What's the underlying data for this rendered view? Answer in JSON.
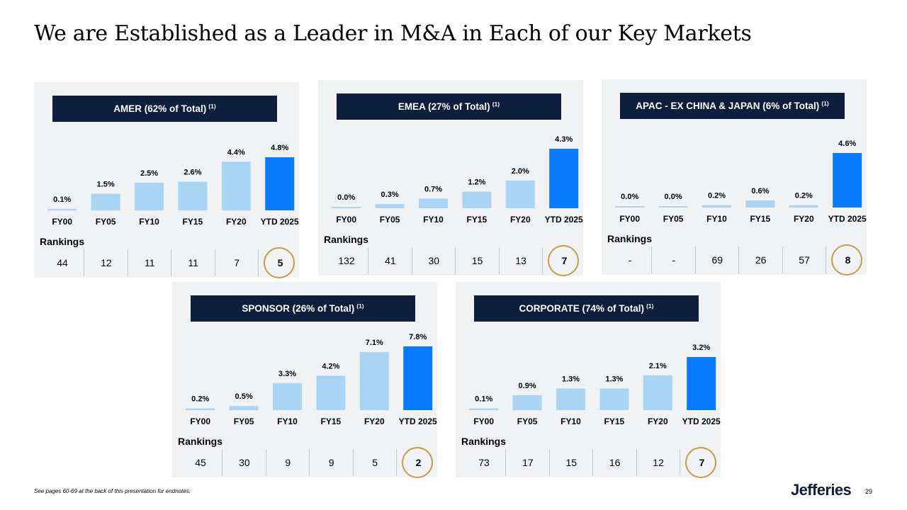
{
  "slide": {
    "title": "We are Established as a Leader in M&A in Each of our Key Markets",
    "footnote": "See pages 60-69 at the back of this presentation for endnotes.",
    "logo_text": "Jefferies",
    "page_number": "29",
    "rankings_label": "Rankings"
  },
  "colors": {
    "bar_light": "#a9d4f3",
    "bar_highlight": "#0a7bff",
    "header_bg": "#0d1f3c",
    "circle": "#c69b4e",
    "panel_bg": "#f1f2f4"
  },
  "chart_data": [
    {
      "type": "bar",
      "title": "AMER (62% of Total)",
      "title_note": "(1)",
      "categories": [
        "FY00",
        "FY05",
        "FY10",
        "FY15",
        "FY20",
        "YTD 2025"
      ],
      "values": [
        0.1,
        1.5,
        2.5,
        2.6,
        4.4,
        4.8
      ],
      "labels": [
        "0.1%",
        "1.5%",
        "2.5%",
        "2.6%",
        "4.4%",
        "4.8%"
      ],
      "rankings": [
        "44",
        "12",
        "11",
        "11",
        "7",
        "5"
      ],
      "highlight_index": 5
    },
    {
      "type": "bar",
      "title": "EMEA (27% of Total)",
      "title_note": "(1)",
      "categories": [
        "FY00",
        "FY05",
        "FY10",
        "FY15",
        "FY20",
        "YTD 2025"
      ],
      "values": [
        0.0,
        0.3,
        0.7,
        1.2,
        2.0,
        4.3
      ],
      "labels": [
        "0.0%",
        "0.3%",
        "0.7%",
        "1.2%",
        "2.0%",
        "4.3%"
      ],
      "rankings": [
        "132",
        "41",
        "30",
        "15",
        "13",
        "7"
      ],
      "highlight_index": 5
    },
    {
      "type": "bar",
      "title": "APAC - EX CHINA & JAPAN (6% of Total)",
      "title_note": "(1)",
      "categories": [
        "FY00",
        "FY05",
        "FY10",
        "FY15",
        "FY20",
        "YTD 2025"
      ],
      "values": [
        0.0,
        0.0,
        0.2,
        0.6,
        0.2,
        4.6
      ],
      "labels": [
        "0.0%",
        "0.0%",
        "0.2%",
        "0.6%",
        "0.2%",
        "4.6%"
      ],
      "rankings": [
        "-",
        "-",
        "69",
        "26",
        "57",
        "8"
      ],
      "highlight_index": 5
    },
    {
      "type": "bar",
      "title": "SPONSOR (26% of Total)",
      "title_note": "(1)",
      "categories": [
        "FY00",
        "FY05",
        "FY10",
        "FY15",
        "FY20",
        "YTD 2025"
      ],
      "values": [
        0.2,
        0.5,
        3.3,
        4.2,
        7.1,
        7.8
      ],
      "labels": [
        "0.2%",
        "0.5%",
        "3.3%",
        "4.2%",
        "7.1%",
        "7.8%"
      ],
      "rankings": [
        "45",
        "30",
        "9",
        "9",
        "5",
        "2"
      ],
      "highlight_index": 5
    },
    {
      "type": "bar",
      "title": "CORPORATE (74% of Total)",
      "title_note": "(1)",
      "categories": [
        "FY00",
        "FY05",
        "FY10",
        "FY15",
        "FY20",
        "YTD 2025"
      ],
      "values": [
        0.1,
        0.9,
        1.3,
        1.3,
        2.1,
        3.2
      ],
      "labels": [
        "0.1%",
        "0.9%",
        "1.3%",
        "1.3%",
        "2.1%",
        "3.2%"
      ],
      "rankings": [
        "73",
        "17",
        "15",
        "16",
        "12",
        "7"
      ],
      "highlight_index": 5
    }
  ]
}
